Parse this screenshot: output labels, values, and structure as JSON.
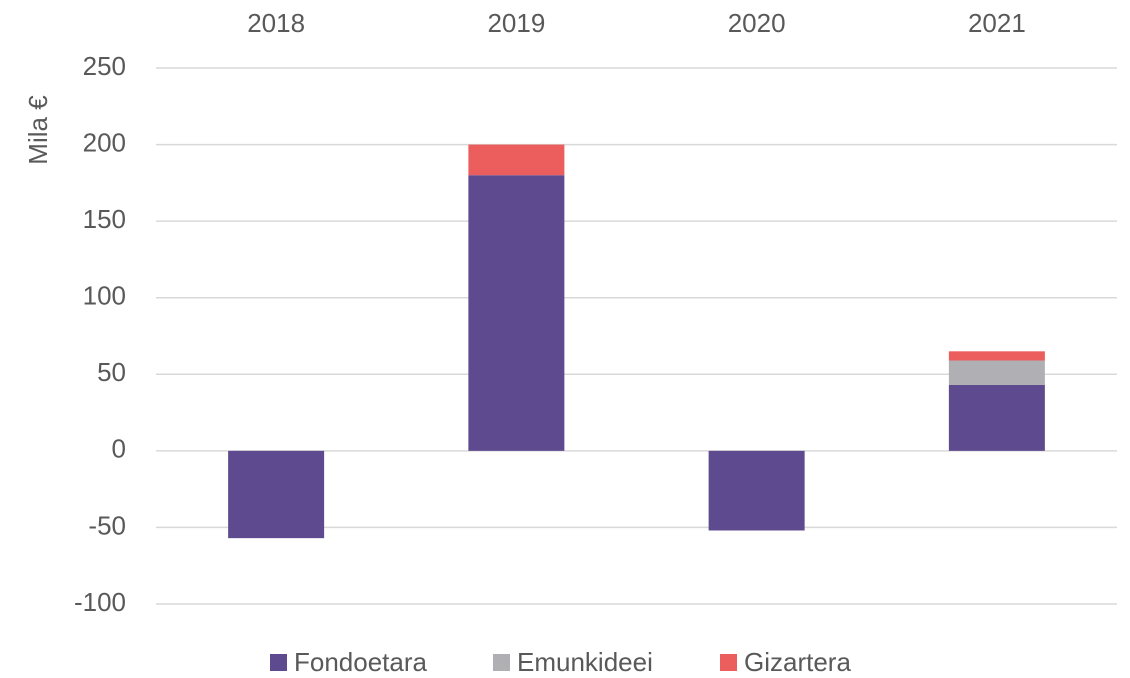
{
  "chart_data": {
    "type": "stacked_bar",
    "y_label": "Mila €",
    "categories": [
      "2018",
      "2019",
      "2020",
      "2021"
    ],
    "series": [
      {
        "name": "Fondoetara",
        "color": "#5e4b8f",
        "values": [
          -57,
          180,
          -52,
          43
        ]
      },
      {
        "name": "Emunkideei",
        "color": "#b0afb3",
        "values": [
          0,
          0,
          0,
          16
        ]
      },
      {
        "name": "Gizartera",
        "color": "#ec5e5e",
        "values": [
          0,
          20,
          0,
          6
        ]
      }
    ],
    "ylim": [
      -100,
      250
    ],
    "yticks": [
      -100,
      -50,
      0,
      50,
      100,
      150,
      200,
      250
    ],
    "grid": true,
    "legend": "bottom"
  }
}
